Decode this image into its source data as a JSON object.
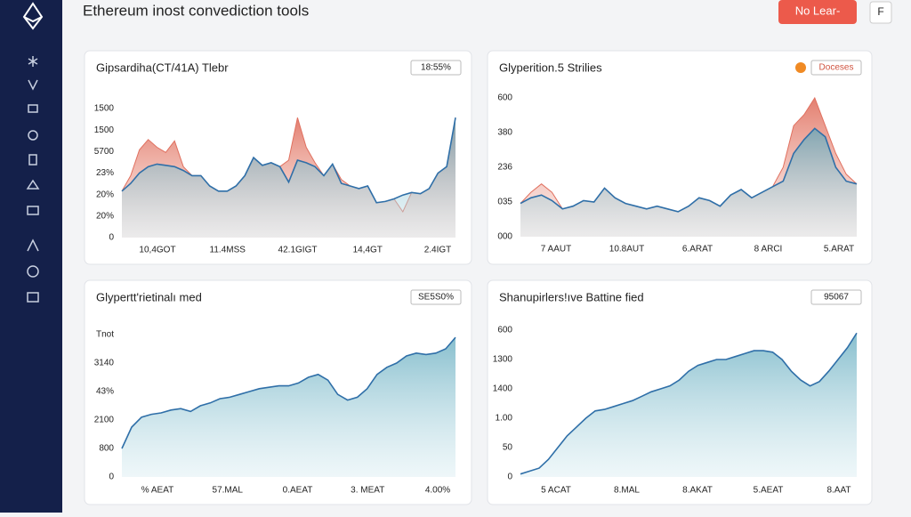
{
  "header": {
    "title": "Ethereum inost convediction tools",
    "primary_button": "No Lear-",
    "icon_button": "F"
  },
  "panels": [
    {
      "title": "Gipsardiha(CT/41A) Tlebr",
      "badge": "18:55%",
      "y_labels": [
        "0",
        "20%",
        "20%",
        "23%",
        "5700",
        "1500",
        "1500"
      ],
      "x_labels": [
        "10,4GOT",
        "11.4MSS",
        "42.1GIGT",
        "14,4GT",
        "2.4IGT"
      ],
      "ylim": [
        0,
        100
      ],
      "series": [
        {
          "color": "#e0705f",
          "values": [
            36,
            48,
            68,
            76,
            70,
            66,
            75,
            55,
            48,
            48,
            40,
            36,
            36,
            40,
            48,
            62,
            56,
            58,
            55,
            60,
            93,
            70,
            58,
            48,
            57,
            45,
            40,
            38,
            40,
            27,
            28,
            30,
            20,
            35,
            34,
            38,
            50,
            55,
            93
          ]
        },
        {
          "color": "#2f6fa8",
          "values": [
            36,
            42,
            50,
            55,
            57,
            56,
            55,
            52,
            48,
            48,
            40,
            36,
            36,
            40,
            48,
            62,
            56,
            58,
            55,
            43,
            60,
            58,
            55,
            48,
            57,
            42,
            40,
            38,
            40,
            27,
            28,
            30,
            33,
            35,
            34,
            38,
            50,
            55,
            93
          ]
        }
      ]
    },
    {
      "title": "Glyperition.5 Strilies",
      "badge": "Doceses",
      "y_labels": [
        "000",
        "035",
        "236",
        "380",
        "600"
      ],
      "x_labels": [
        "7 AAUT",
        "10.8AUT",
        "6.ARAT",
        "8 ARCI",
        "5.ARAT"
      ],
      "ylim": [
        0,
        100
      ],
      "series": [
        {
          "color": "#e0705f",
          "values": [
            24,
            32,
            38,
            32,
            20,
            22,
            26,
            25,
            35,
            28,
            24,
            22,
            20,
            22,
            20,
            18,
            22,
            28,
            26,
            22,
            30,
            34,
            28,
            32,
            36,
            50,
            80,
            88,
            100,
            80,
            60,
            45,
            38
          ]
        },
        {
          "color": "#2f6fa8",
          "values": [
            24,
            28,
            30,
            26,
            20,
            22,
            26,
            25,
            35,
            28,
            24,
            22,
            20,
            22,
            20,
            18,
            22,
            28,
            26,
            22,
            30,
            34,
            28,
            32,
            36,
            40,
            60,
            70,
            78,
            72,
            50,
            40,
            38
          ]
        }
      ]
    },
    {
      "title": "Glypertt'rietinalı med",
      "badge": "SE5S0%",
      "y_labels": [
        "0",
        "800",
        "2100",
        "43%",
        "3140",
        "Tnot"
      ],
      "x_labels": [
        "% AEAT",
        "57.MAL",
        "0.AEAT",
        "3. MEAT",
        "4.00%"
      ],
      "ylim": [
        0,
        100
      ],
      "series": [
        {
          "color": "#2f6fa8",
          "values": [
            20,
            35,
            42,
            44,
            45,
            47,
            48,
            46,
            50,
            52,
            55,
            56,
            58,
            60,
            62,
            63,
            64,
            64,
            66,
            70,
            72,
            68,
            58,
            54,
            56,
            62,
            72,
            77,
            80,
            85,
            87,
            86,
            87,
            90,
            98
          ]
        }
      ]
    },
    {
      "title": "Shanupirlers!ıve Battine fied",
      "badge": "95067",
      "y_labels": [
        "0",
        "50",
        "1.00",
        "1400",
        "1300",
        "600"
      ],
      "x_labels": [
        "5 ACAT",
        "8.MAL",
        "8.AKAT",
        "5.AEAT",
        "8.AAT"
      ],
      "ylim": [
        0,
        100
      ],
      "series": [
        {
          "color": "#2f6fa8",
          "values": [
            2,
            4,
            6,
            12,
            20,
            28,
            34,
            40,
            45,
            46,
            48,
            50,
            52,
            55,
            58,
            60,
            62,
            66,
            72,
            76,
            78,
            80,
            80,
            82,
            84,
            86,
            86,
            85,
            80,
            72,
            66,
            62,
            65,
            72,
            80,
            88,
            98
          ]
        }
      ]
    }
  ]
}
